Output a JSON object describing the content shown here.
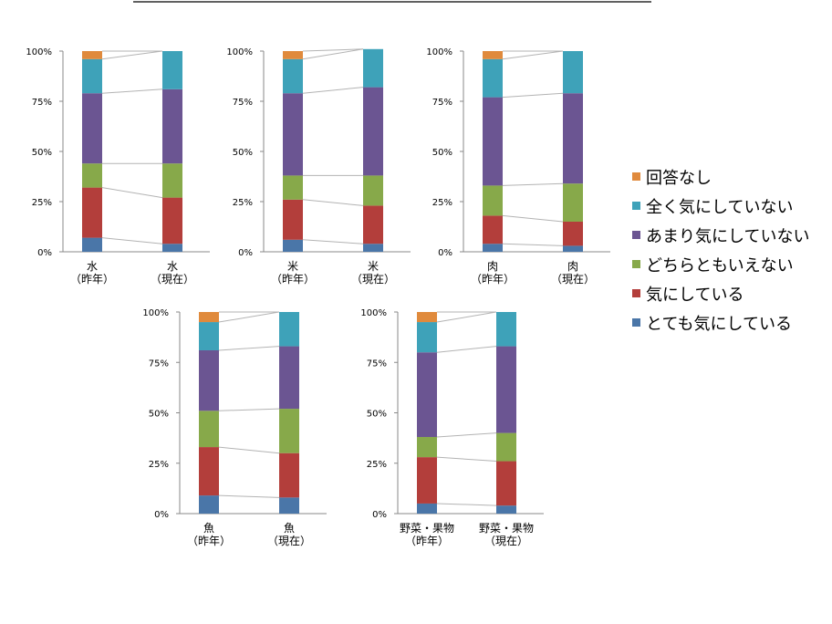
{
  "chart_data": {
    "type": "bar",
    "stacked": true,
    "ylim": [
      0,
      100
    ],
    "yticks": [
      "0%",
      "25%",
      "50%",
      "75%",
      "100%"
    ],
    "legend_placement": "right",
    "series": [
      {
        "name": "とても気にしている",
        "color": "#4a76a8"
      },
      {
        "name": "気にしている",
        "color": "#b33e3b"
      },
      {
        "name": "どちらともいえない",
        "color": "#87a94a"
      },
      {
        "name": "あまり気にしていない",
        "color": "#6b5592"
      },
      {
        "name": "全く気にしていない",
        "color": "#3ea2b9"
      },
      {
        "name": "回答なし",
        "color": "#e08a3c"
      }
    ],
    "charts": [
      {
        "categories": [
          [
            "水",
            "（昨年）"
          ],
          [
            "水",
            "（現在）"
          ]
        ],
        "values": [
          [
            7,
            25,
            12,
            35,
            17,
            4
          ],
          [
            4,
            23,
            17,
            37,
            19,
            0
          ]
        ]
      },
      {
        "categories": [
          [
            "米",
            "（昨年）"
          ],
          [
            "米",
            "（現在）"
          ]
        ],
        "values": [
          [
            6,
            20,
            12,
            41,
            17,
            4
          ],
          [
            4,
            19,
            15,
            44,
            19,
            0
          ]
        ]
      },
      {
        "categories": [
          [
            "肉",
            "（昨年）"
          ],
          [
            "肉",
            "（現在）"
          ]
        ],
        "values": [
          [
            4,
            14,
            15,
            44,
            19,
            4
          ],
          [
            3,
            12,
            19,
            45,
            21,
            0
          ]
        ]
      },
      {
        "categories": [
          [
            "魚",
            "（昨年）"
          ],
          [
            "魚",
            "（現在）"
          ]
        ],
        "values": [
          [
            9,
            24,
            18,
            30,
            14,
            5
          ],
          [
            8,
            22,
            22,
            31,
            17,
            0
          ]
        ]
      },
      {
        "categories": [
          [
            "野菜・果物",
            "（昨年）"
          ],
          [
            "野菜・果物",
            "（現在）"
          ]
        ],
        "values": [
          [
            5,
            23,
            10,
            42,
            15,
            5
          ],
          [
            4,
            22,
            14,
            43,
            17,
            0
          ]
        ]
      }
    ]
  }
}
